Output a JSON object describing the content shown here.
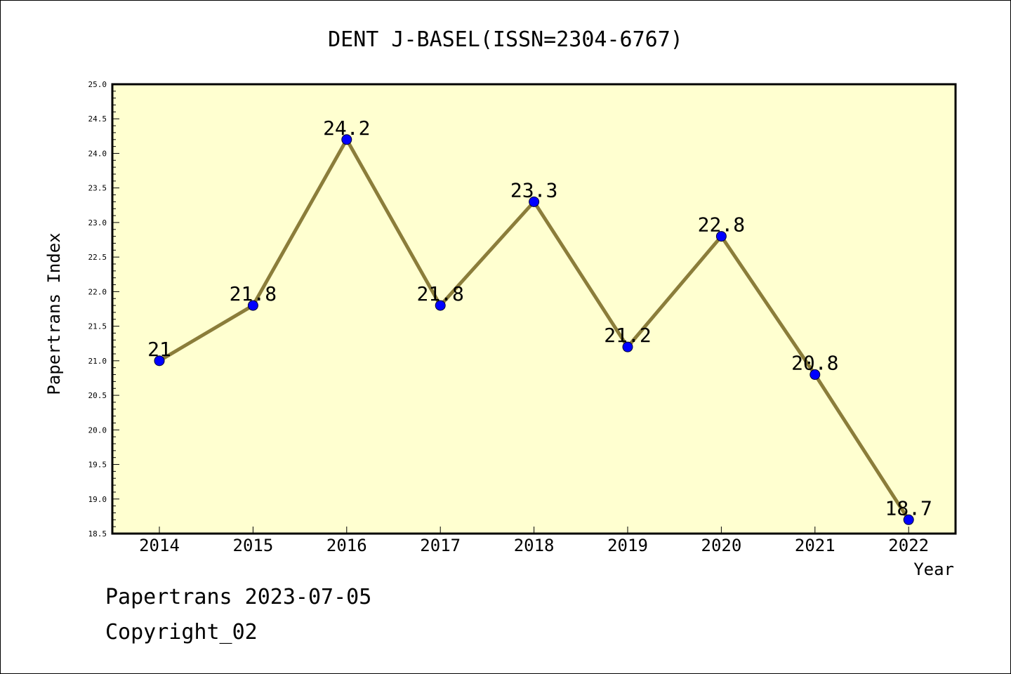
{
  "chart_data": {
    "type": "line",
    "title": "DENT J-BASEL(ISSN=2304-6767)",
    "xlabel": "Year",
    "ylabel": "Papertrans Index",
    "categories": [
      "2014",
      "2015",
      "2016",
      "2017",
      "2018",
      "2019",
      "2020",
      "2021",
      "2022"
    ],
    "series": [
      {
        "values": [
          21,
          21.8,
          24.2,
          21.8,
          23.3,
          21.2,
          22.8,
          20.8,
          18.7
        ],
        "data_labels": [
          "21",
          "21.8",
          "24.2",
          "21.8",
          "23.3",
          "21.2",
          "22.8",
          "20.8",
          "18.7"
        ]
      }
    ],
    "ylim": [
      18.5,
      25.0
    ],
    "y_ticks": [
      "18.5",
      "19.0",
      "19.5",
      "20.0",
      "20.5",
      "21.0",
      "21.5",
      "22.0",
      "22.5",
      "23.0",
      "23.5",
      "24.0",
      "24.5",
      "25.0"
    ],
    "grid": false,
    "colors": {
      "plot_background": "#ffffd0",
      "line": "#8b7d3a",
      "marker": "#0000ff"
    }
  },
  "footer": {
    "line1": "Papertrans 2023-07-05",
    "line2": "Copyright_02"
  }
}
